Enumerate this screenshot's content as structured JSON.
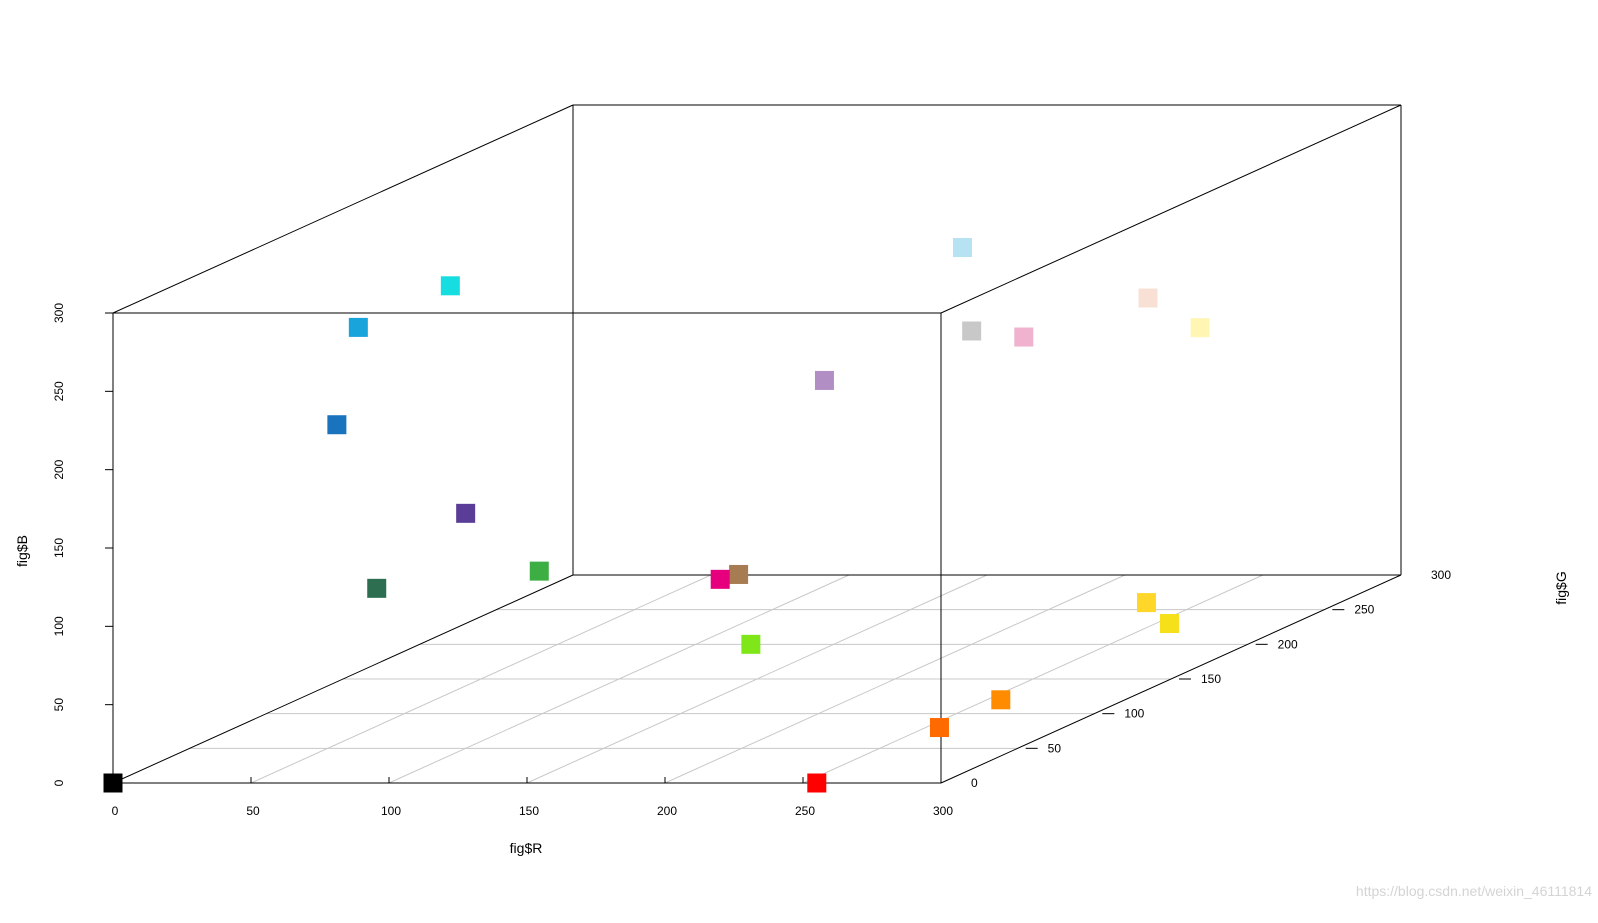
{
  "chart_data": {
    "type": "scatter",
    "projection": "3d",
    "xlabel": "fig$R",
    "ylabel": "fig$G",
    "zlabel": "fig$B",
    "xlim": [
      0,
      300
    ],
    "ylim": [
      0,
      300
    ],
    "zlim": [
      0,
      300
    ],
    "x_ticks": [
      "0",
      "50",
      "100",
      "150",
      "200",
      "250",
      "300"
    ],
    "y_ticks": [
      "0",
      "50",
      "100",
      "150",
      "200",
      "250",
      "300"
    ],
    "z_ticks": [
      "0",
      "50",
      "100",
      "150",
      "200",
      "250",
      "300"
    ],
    "grid": "floor",
    "grid_color": "#c8c8c8",
    "point_shape": "square",
    "points": [
      {
        "r": 0,
        "g": 0,
        "b": 0,
        "color": "#000000"
      },
      {
        "r": 255,
        "g": 0,
        "b": 0,
        "color": "#ff0000"
      },
      {
        "r": 255,
        "g": 80,
        "b": 0,
        "color": "#ff6a00"
      },
      {
        "r": 255,
        "g": 120,
        "b": 0,
        "color": "#ff8c00"
      },
      {
        "r": 255,
        "g": 230,
        "b": 0,
        "color": "#f5e01a"
      },
      {
        "r": 255,
        "g": 215,
        "b": 20,
        "color": "#ffd72a"
      },
      {
        "r": 120,
        "g": 200,
        "b": 0,
        "color": "#7fe619"
      },
      {
        "r": 220,
        "g": 0,
        "b": 130,
        "color": "#e6007d"
      },
      {
        "r": 160,
        "g": 120,
        "b": 80,
        "color": "#a87c52"
      },
      {
        "r": 60,
        "g": 170,
        "b": 60,
        "color": "#3dae43"
      },
      {
        "r": 40,
        "g": 100,
        "b": 80,
        "color": "#2e6e50"
      },
      {
        "r": 100,
        "g": 50,
        "b": 150,
        "color": "#5a3d96"
      },
      {
        "r": 20,
        "g": 110,
        "b": 180,
        "color": "#1a73bd"
      },
      {
        "r": 0,
        "g": 160,
        "b": 220,
        "color": "#19a4dc"
      },
      {
        "r": 0,
        "g": 220,
        "b": 220,
        "color": "#16dde0"
      },
      {
        "r": 180,
        "g": 140,
        "b": 195,
        "color": "#b18ec3"
      },
      {
        "r": 200,
        "g": 200,
        "b": 200,
        "color": "#c8c8c8"
      },
      {
        "r": 230,
        "g": 180,
        "b": 205,
        "color": "#f0b2cf"
      },
      {
        "r": 250,
        "g": 225,
        "b": 210,
        "color": "#f8e0d4"
      },
      {
        "r": 255,
        "g": 250,
        "b": 180,
        "color": "#fff6b4"
      },
      {
        "r": 180,
        "g": 230,
        "b": 240,
        "color": "#b6e2f2"
      }
    ]
  },
  "watermark": "https://blog.csdn.net/weixin_46111814"
}
